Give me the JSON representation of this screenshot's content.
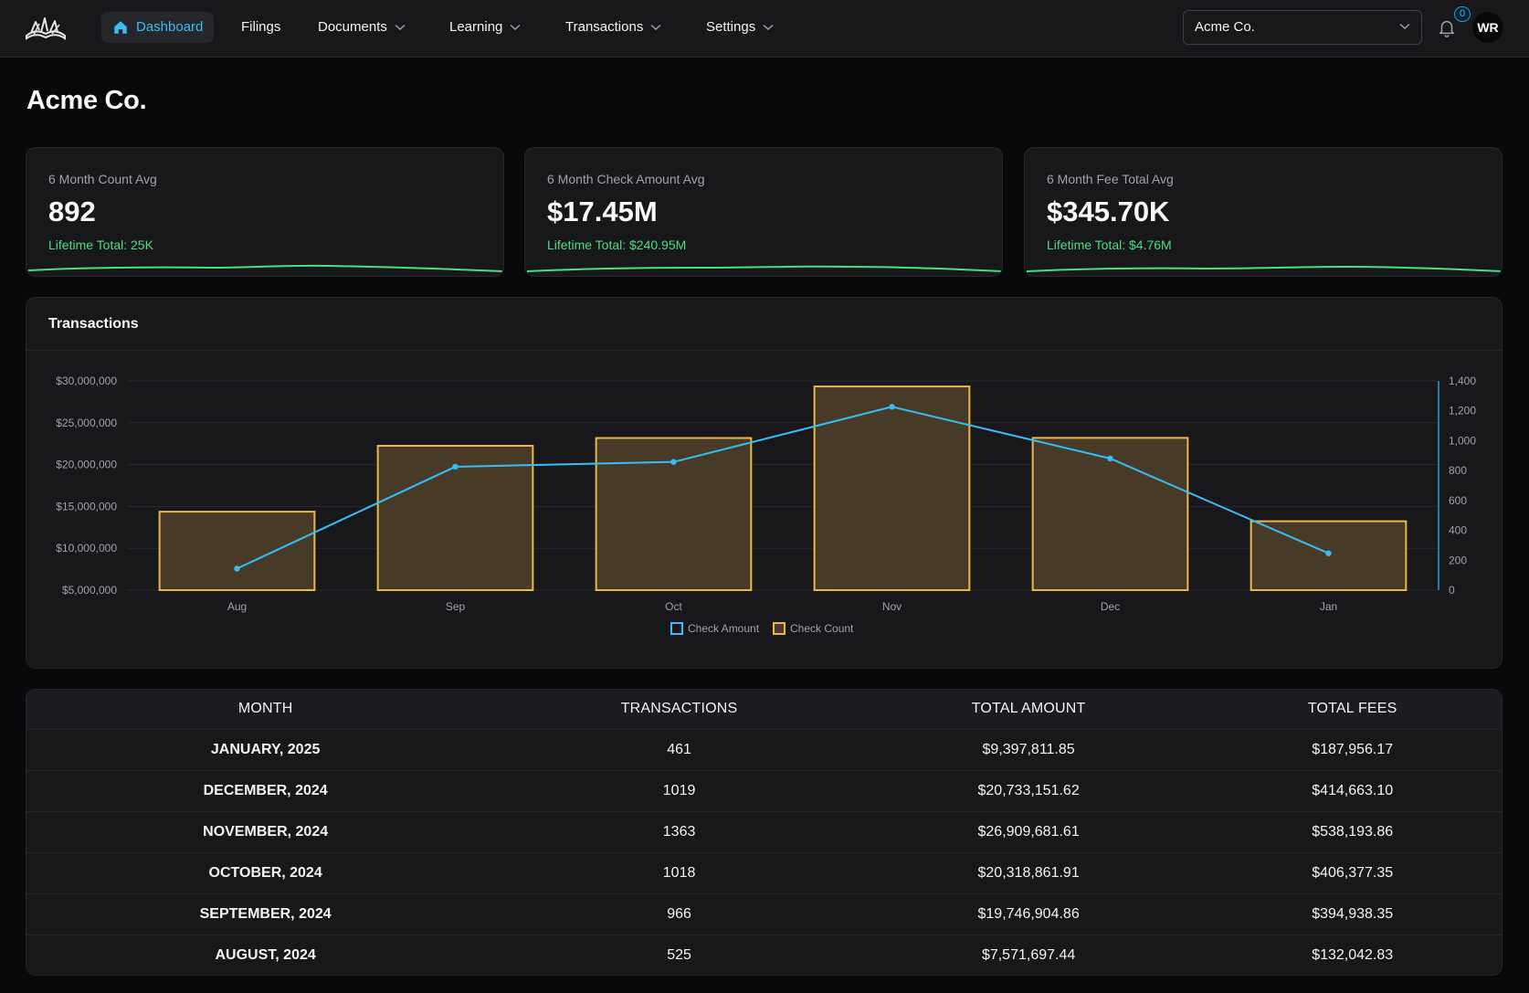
{
  "colors": {
    "accent": "#38bdf8",
    "positive": "#4ade80",
    "bar_stroke": "#eab84a",
    "bar_fill": "#4a3d28",
    "line": "#38bdf8"
  },
  "nav": {
    "logo_icon": "reading-book-logo",
    "items": [
      {
        "label": "Dashboard",
        "icon": "home-icon",
        "active": true
      },
      {
        "label": "Filings"
      },
      {
        "label": "Documents",
        "dropdown": true
      },
      {
        "label": "Learning",
        "dropdown": true
      },
      {
        "label": "Transactions",
        "dropdown": true
      },
      {
        "label": "Settings",
        "dropdown": true
      }
    ],
    "company_select": {
      "value": "Acme Co."
    },
    "notifications": {
      "count": "0"
    },
    "avatar": "WR"
  },
  "page": {
    "title": "Acme Co."
  },
  "stats": [
    {
      "label": "6 Month Count Avg",
      "value": "892",
      "sub": "Lifetime Total: 25K"
    },
    {
      "label": "6 Month Check Amount Avg",
      "value": "$17.45M",
      "sub": "Lifetime Total: $240.95M"
    },
    {
      "label": "6 Month Fee Total Avg",
      "value": "$345.70K",
      "sub": "Lifetime Total: $4.76M"
    }
  ],
  "chart": {
    "title": "Transactions"
  },
  "chart_data": {
    "type": "bar",
    "categories": [
      "Aug",
      "Sep",
      "Oct",
      "Nov",
      "Dec",
      "Jan"
    ],
    "series": [
      {
        "name": "Check Amount",
        "type": "line",
        "axis": "left",
        "values": [
          7571697.44,
          19746904.86,
          20318861.91,
          26909681.61,
          20733151.62,
          9397811.85
        ]
      },
      {
        "name": "Check Count",
        "type": "bar",
        "axis": "right",
        "values": [
          525,
          966,
          1018,
          1363,
          1019,
          461
        ]
      }
    ],
    "y_left": {
      "min": 5000000,
      "max": 30000000,
      "ticks": [
        "$5,000,000",
        "$10,000,000",
        "$15,000,000",
        "$20,000,000",
        "$25,000,000",
        "$30,000,000"
      ]
    },
    "y_right": {
      "min": 0,
      "max": 1400,
      "ticks": [
        "0",
        "200",
        "400",
        "600",
        "800",
        "1,000",
        "1,200",
        "1,400"
      ]
    },
    "legend": [
      "Check Amount",
      "Check Count"
    ],
    "legend_position": "bottom-center",
    "grid": true
  },
  "table": {
    "headers": [
      "Month",
      "Transactions",
      "Total Amount",
      "Total Fees"
    ],
    "rows": [
      [
        "January, 2025",
        "461",
        "$9,397,811.85",
        "$187,956.17"
      ],
      [
        "December, 2024",
        "1019",
        "$20,733,151.62",
        "$414,663.10"
      ],
      [
        "November, 2024",
        "1363",
        "$26,909,681.61",
        "$538,193.86"
      ],
      [
        "October, 2024",
        "1018",
        "$20,318,861.91",
        "$406,377.35"
      ],
      [
        "September, 2024",
        "966",
        "$19,746,904.86",
        "$394,938.35"
      ],
      [
        "August, 2024",
        "525",
        "$7,571,697.44",
        "$132,042.83"
      ]
    ]
  }
}
